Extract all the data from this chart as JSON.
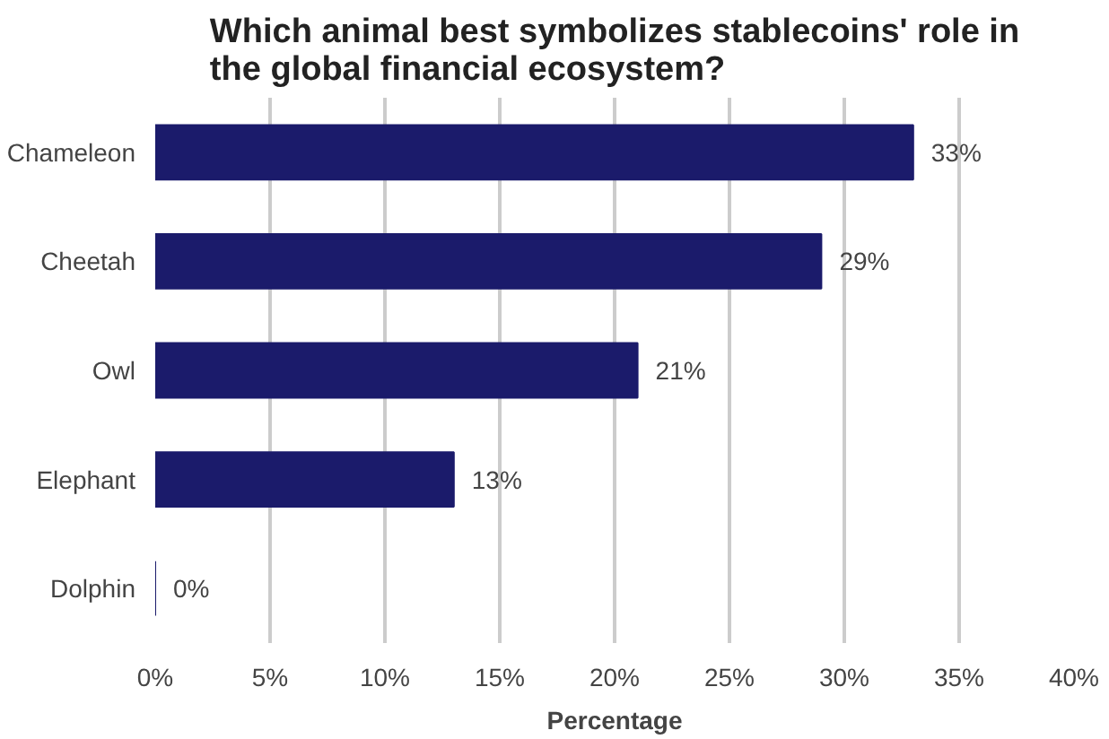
{
  "chart_data": {
    "type": "bar",
    "orientation": "horizontal",
    "title": "Which animal best symbolizes stablecoins' role in the global financial ecosystem?",
    "xlabel": "Percentage",
    "categories": [
      "Chameleon",
      "Cheetah",
      "Owl",
      "Elephant",
      "Dolphin"
    ],
    "values": [
      33,
      29,
      21,
      13,
      0
    ],
    "value_labels": [
      "33%",
      "29%",
      "21%",
      "13%",
      "0%"
    ],
    "color": "#1b1b6b",
    "xlim": [
      0,
      40
    ],
    "xticks": [
      {
        "value": 0,
        "label": "0%"
      },
      {
        "value": 5,
        "label": "5%"
      },
      {
        "value": 10,
        "label": "10%"
      },
      {
        "value": 15,
        "label": "15%"
      },
      {
        "value": 20,
        "label": "20%"
      },
      {
        "value": 25,
        "label": "25%"
      },
      {
        "value": 30,
        "label": "30%"
      },
      {
        "value": 35,
        "label": "35%"
      },
      {
        "value": 40,
        "label": "40%"
      }
    ],
    "grid": "x"
  }
}
